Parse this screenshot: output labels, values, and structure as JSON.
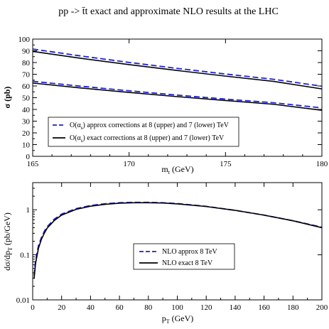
{
  "title": "pp -> t̄t exact and approximate NLO results at the LHC",
  "colors": {
    "approx": "#1f1fd6",
    "exact": "#000000",
    "axes": "#000000",
    "background": "#ffffff"
  },
  "chart_data": [
    {
      "type": "line",
      "xlabel": "m_t (GeV)",
      "ylabel": "σ (pb)",
      "xlim": [
        165,
        180
      ],
      "ylim": [
        0,
        100
      ],
      "xticks": [
        165,
        170,
        175,
        180
      ],
      "yticks": [
        0,
        10,
        20,
        30,
        40,
        50,
        60,
        70,
        80,
        90,
        100
      ],
      "xtick_labels": [
        "165",
        "170",
        "175",
        "180"
      ],
      "ytick_labels": [
        "0",
        "10",
        "20",
        "30",
        "40",
        "50",
        "60",
        "70",
        "80",
        "90",
        "100"
      ],
      "grid": false,
      "legend_position": "bottom-left",
      "legend": [
        "O(α_s) approx corrections at 8 (upper) and 7 (lower) TeV",
        "O(α_s) exact corrections at 8 (upper) and 7 (lower) TeV"
      ],
      "series": [
        {
          "kind": "approx",
          "energy": "8 TeV",
          "style": "dashed",
          "x": [
            165,
            167.5,
            170,
            172.5,
            175,
            177.5,
            180
          ],
          "y": [
            91.5,
            85.6,
            80.1,
            75.0,
            70.2,
            65.7,
            59.8
          ]
        },
        {
          "kind": "exact",
          "energy": "8 TeV",
          "style": "solid",
          "x": [
            165,
            167.5,
            170,
            172.5,
            175,
            177.5,
            180
          ],
          "y": [
            89.5,
            83.6,
            78.2,
            73.2,
            68.4,
            63.9,
            57.5
          ]
        },
        {
          "kind": "approx",
          "energy": "7 TeV",
          "style": "dashed",
          "x": [
            165,
            167.5,
            170,
            172.5,
            175,
            177.5,
            180
          ],
          "y": [
            64.0,
            59.8,
            55.9,
            52.2,
            48.8,
            45.7,
            41.3
          ]
        },
        {
          "kind": "exact",
          "energy": "7 TeV",
          "style": "solid",
          "x": [
            165,
            167.5,
            170,
            172.5,
            175,
            177.5,
            180
          ],
          "y": [
            62.5,
            58.3,
            54.5,
            50.9,
            47.6,
            44.4,
            39.3
          ]
        }
      ]
    },
    {
      "type": "line",
      "xlabel": "p_T (GeV)",
      "ylabel": "dσ/dp_T (pb/GeV)",
      "xlim": [
        0,
        200
      ],
      "ylim": [
        0.01,
        4
      ],
      "yscale": "log",
      "xticks": [
        0,
        20,
        40,
        60,
        80,
        100,
        120,
        140,
        160,
        180,
        200
      ],
      "yticks": [
        0.01,
        0.1,
        1
      ],
      "xtick_labels": [
        "0",
        "20",
        "40",
        "60",
        "80",
        "100",
        "120",
        "140",
        "160",
        "180",
        "200"
      ],
      "ytick_labels": [
        "0.01",
        "0.1",
        "1"
      ],
      "grid": false,
      "legend_position": "bottom-center",
      "legend": [
        "NLO  approx 8 TeV",
        "NLO  exact    8 TeV"
      ],
      "series": [
        {
          "kind": "approx",
          "style": "dashed",
          "x": [
            1,
            2,
            4,
            6,
            8,
            10,
            15,
            20,
            30,
            40,
            50,
            60,
            70,
            80,
            90,
            100,
            120,
            140,
            160,
            180,
            200
          ],
          "y": [
            0.035,
            0.075,
            0.16,
            0.24,
            0.33,
            0.42,
            0.62,
            0.8,
            1.06,
            1.24,
            1.36,
            1.43,
            1.46,
            1.46,
            1.43,
            1.37,
            1.19,
            0.97,
            0.76,
            0.57,
            0.41
          ]
        },
        {
          "kind": "exact",
          "style": "solid",
          "x": [
            1,
            2,
            4,
            6,
            8,
            10,
            15,
            20,
            30,
            40,
            50,
            60,
            70,
            80,
            90,
            100,
            120,
            140,
            160,
            180,
            200
          ],
          "y": [
            0.03,
            0.065,
            0.14,
            0.22,
            0.3,
            0.39,
            0.58,
            0.76,
            1.02,
            1.2,
            1.32,
            1.4,
            1.43,
            1.43,
            1.41,
            1.35,
            1.18,
            0.97,
            0.76,
            0.57,
            0.4
          ]
        }
      ]
    }
  ]
}
